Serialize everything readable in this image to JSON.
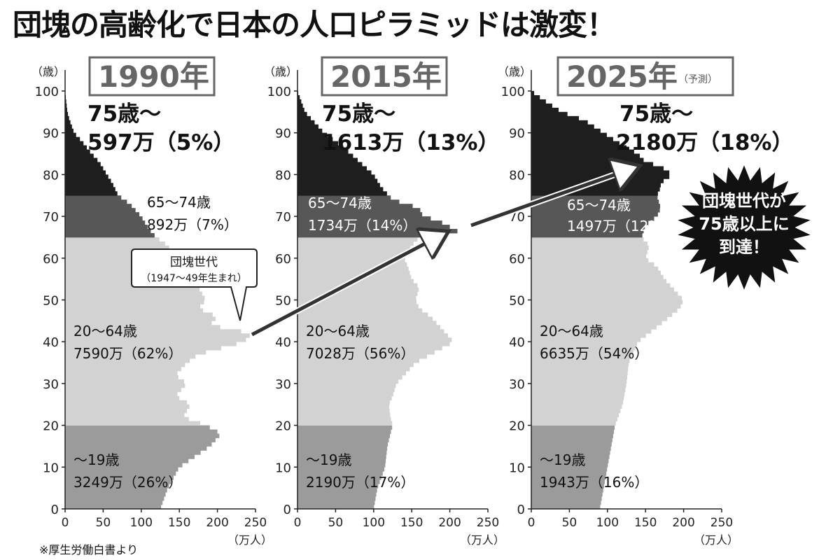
{
  "title": "団塊の高齢化で日本の人口ピラミッドは激変！",
  "source": "※厚生労働白書より",
  "colors": {
    "age75plus": "#1e1e1e",
    "age65to74": "#575757",
    "age20to64": "#d2d2d2",
    "age0to19": "#9b9b9b",
    "arrow": "#333333"
  },
  "chart_data": [
    {
      "type": "bar",
      "orientation": "horizontal",
      "year_label": "1990年",
      "note": "",
      "ylabel": "（歳）",
      "xlabel": "（万人）",
      "x_ticks": [
        "0",
        "50",
        "100",
        "150",
        "200",
        "250"
      ],
      "y_ticks": [
        "0",
        "10",
        "20",
        "30",
        "40",
        "50",
        "60",
        "70",
        "80",
        "90",
        "100"
      ],
      "xlim": [
        0,
        250
      ],
      "ylim": [
        0,
        100
      ],
      "profile_ages": [
        0,
        5,
        10,
        15,
        18,
        20,
        22,
        25,
        27,
        30,
        32,
        35,
        37,
        40,
        42,
        44,
        46,
        48,
        50,
        53,
        55,
        58,
        60,
        63,
        65,
        67,
        70,
        73,
        75,
        78,
        80,
        83,
        85,
        88,
        90,
        93,
        95,
        100
      ],
      "profile_values": [
        125,
        135,
        150,
        190,
        205,
        185,
        155,
        165,
        145,
        160,
        145,
        160,
        175,
        235,
        245,
        190,
        200,
        175,
        185,
        175,
        170,
        155,
        145,
        135,
        120,
        110,
        100,
        85,
        70,
        62,
        55,
        45,
        35,
        22,
        12,
        6,
        3,
        0
      ],
      "groups": [
        {
          "range": "75歳〜",
          "label": "75歳〜",
          "value": "597万（5%）"
        },
        {
          "range": "65〜74歳",
          "label": "65〜74歳",
          "value": "892万（7%）"
        },
        {
          "range": "20〜64歳",
          "label": "20〜64歳",
          "value": "7590万（62%）"
        },
        {
          "range": "〜19歳",
          "label": "〜19歳",
          "value": "3249万（26%）"
        }
      ]
    },
    {
      "type": "bar",
      "orientation": "horizontal",
      "year_label": "2015年",
      "note": "",
      "ylabel": "（歳）",
      "xlabel": "（万人）",
      "x_ticks": [
        "0",
        "50",
        "100",
        "150",
        "200",
        "250"
      ],
      "y_ticks": [
        "0",
        "10",
        "20",
        "30",
        "40",
        "50",
        "60",
        "70",
        "80",
        "90",
        "100"
      ],
      "xlim": [
        0,
        250
      ],
      "ylim": [
        0,
        100
      ],
      "profile_ages": [
        0,
        5,
        10,
        15,
        18,
        20,
        22,
        25,
        27,
        30,
        32,
        35,
        37,
        40,
        42,
        44,
        46,
        48,
        50,
        53,
        55,
        58,
        60,
        63,
        65,
        66,
        67,
        69,
        70,
        72,
        74,
        75,
        77,
        80,
        82,
        85,
        88,
        90,
        93,
        95,
        100
      ],
      "profile_values": [
        100,
        105,
        115,
        118,
        122,
        125,
        122,
        120,
        125,
        130,
        140,
        155,
        175,
        205,
        195,
        185,
        175,
        160,
        155,
        160,
        150,
        145,
        140,
        150,
        160,
        215,
        205,
        185,
        165,
        160,
        125,
        120,
        110,
        100,
        88,
        70,
        50,
        35,
        20,
        10,
        0
      ],
      "groups": [
        {
          "range": "75歳〜",
          "label": "75歳〜",
          "value": "1613万（13%）"
        },
        {
          "range": "65〜74歳",
          "label": "65〜74歳",
          "value": "1734万（14%）"
        },
        {
          "range": "20〜64歳",
          "label": "20〜64歳",
          "value": "7028万（56%）"
        },
        {
          "range": "〜19歳",
          "label": "〜19歳",
          "value": "2190万（17%）"
        }
      ]
    },
    {
      "type": "bar",
      "orientation": "horizontal",
      "year_label": "2025年",
      "note": "（予測）",
      "ylabel": "（歳）",
      "xlabel": "（万人）",
      "x_ticks": [
        "0",
        "50",
        "100",
        "150",
        "200",
        "250"
      ],
      "y_ticks": [
        "0",
        "10",
        "20",
        "30",
        "40",
        "50",
        "60",
        "70",
        "80",
        "90",
        "100"
      ],
      "xlim": [
        0,
        250
      ],
      "ylim": [
        0,
        100
      ],
      "profile_ages": [
        0,
        5,
        10,
        15,
        20,
        25,
        30,
        35,
        40,
        45,
        48,
        50,
        52,
        55,
        58,
        60,
        63,
        65,
        68,
        70,
        72,
        75,
        77,
        78,
        80,
        82,
        83,
        85,
        87,
        90,
        93,
        95,
        98,
        100
      ],
      "profile_values": [
        90,
        95,
        100,
        105,
        110,
        120,
        125,
        128,
        140,
        175,
        195,
        200,
        190,
        175,
        165,
        150,
        155,
        145,
        150,
        165,
        170,
        165,
        170,
        170,
        185,
        170,
        150,
        140,
        120,
        95,
        70,
        40,
        15,
        0
      ],
      "groups": [
        {
          "range": "75歳〜",
          "label": "75歳〜",
          "value": "2180万（18%）"
        },
        {
          "range": "65〜74歳",
          "label": "65〜74歳",
          "value": "1497万（12%）"
        },
        {
          "range": "20〜64歳",
          "label": "20〜64歳",
          "value": "6635万（54%）"
        },
        {
          "range": "〜19歳",
          "label": "〜19歳",
          "value": "1943万（16%）"
        }
      ]
    }
  ],
  "callout": {
    "line1": "団塊世代",
    "line2": "（1947〜49年生まれ）"
  },
  "burst": {
    "line1": "団塊世代が",
    "line2": "75歳以上に",
    "line3": "到達！"
  }
}
